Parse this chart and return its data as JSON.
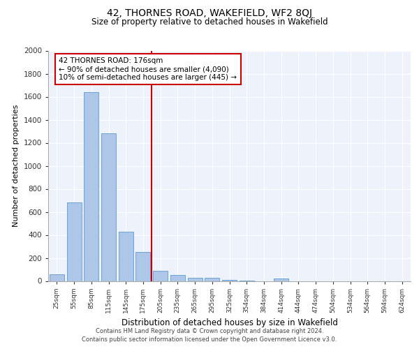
{
  "title1": "42, THORNES ROAD, WAKEFIELD, WF2 8QJ",
  "title2": "Size of property relative to detached houses in Wakefield",
  "xlabel": "Distribution of detached houses by size in Wakefield",
  "ylabel": "Number of detached properties",
  "categories": [
    "25sqm",
    "55sqm",
    "85sqm",
    "115sqm",
    "145sqm",
    "175sqm",
    "205sqm",
    "235sqm",
    "265sqm",
    "295sqm",
    "325sqm",
    "354sqm",
    "384sqm",
    "414sqm",
    "444sqm",
    "474sqm",
    "504sqm",
    "534sqm",
    "564sqm",
    "594sqm",
    "624sqm"
  ],
  "values": [
    60,
    680,
    1640,
    1280,
    430,
    250,
    90,
    50,
    30,
    25,
    10,
    5,
    0,
    20,
    0,
    0,
    0,
    0,
    0,
    0,
    0
  ],
  "bar_color": "#aec6e8",
  "bar_edge_color": "#5b9bd5",
  "background_color": "#eef2fa",
  "grid_color": "#ffffff",
  "vline_color": "#cc0000",
  "annotation_text": "42 THORNES ROAD: 176sqm\n← 90% of detached houses are smaller (4,090)\n10% of semi-detached houses are larger (445) →",
  "annotation_box_color": "#ffffff",
  "annotation_box_edge": "#cc0000",
  "ylim": [
    0,
    2000
  ],
  "yticks": [
    0,
    200,
    400,
    600,
    800,
    1000,
    1200,
    1400,
    1600,
    1800,
    2000
  ],
  "footer1": "Contains HM Land Registry data © Crown copyright and database right 2024.",
  "footer2": "Contains public sector information licensed under the Open Government Licence v3.0.",
  "vline_pos": 5.48
}
